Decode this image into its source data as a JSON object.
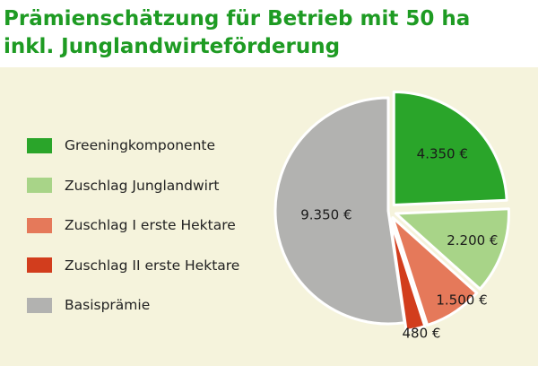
{
  "colors": {
    "title": "#1e9b23",
    "background": "#f5f3dc"
  },
  "chart_data": {
    "type": "pie",
    "title_lines": [
      "Prämienschätzung für Betrieb mit 50 ha",
      "inkl. Junglandwirteförderung"
    ],
    "legend_position": "left",
    "slices": [
      {
        "name": "Greeningkomponente",
        "value": 4350,
        "label": "4.350 €",
        "color": "#2aa52a",
        "exploded": true
      },
      {
        "name": "Zuschlag Junglandwirt",
        "value": 2200,
        "label": "2.200 €",
        "color": "#a8d488",
        "exploded": true
      },
      {
        "name": "Zuschlag I erste Hektare",
        "value": 1500,
        "label": "1.500 €",
        "color": "#e5795a",
        "exploded": true
      },
      {
        "name": "Zuschlag II erste Hektare",
        "value": 480,
        "label": "480 €",
        "color": "#d23d1d",
        "exploded": true
      },
      {
        "name": "Basisprämie",
        "value": 9350,
        "label": "9.350 €",
        "color": "#b2b2b0",
        "exploded": false
      }
    ]
  }
}
